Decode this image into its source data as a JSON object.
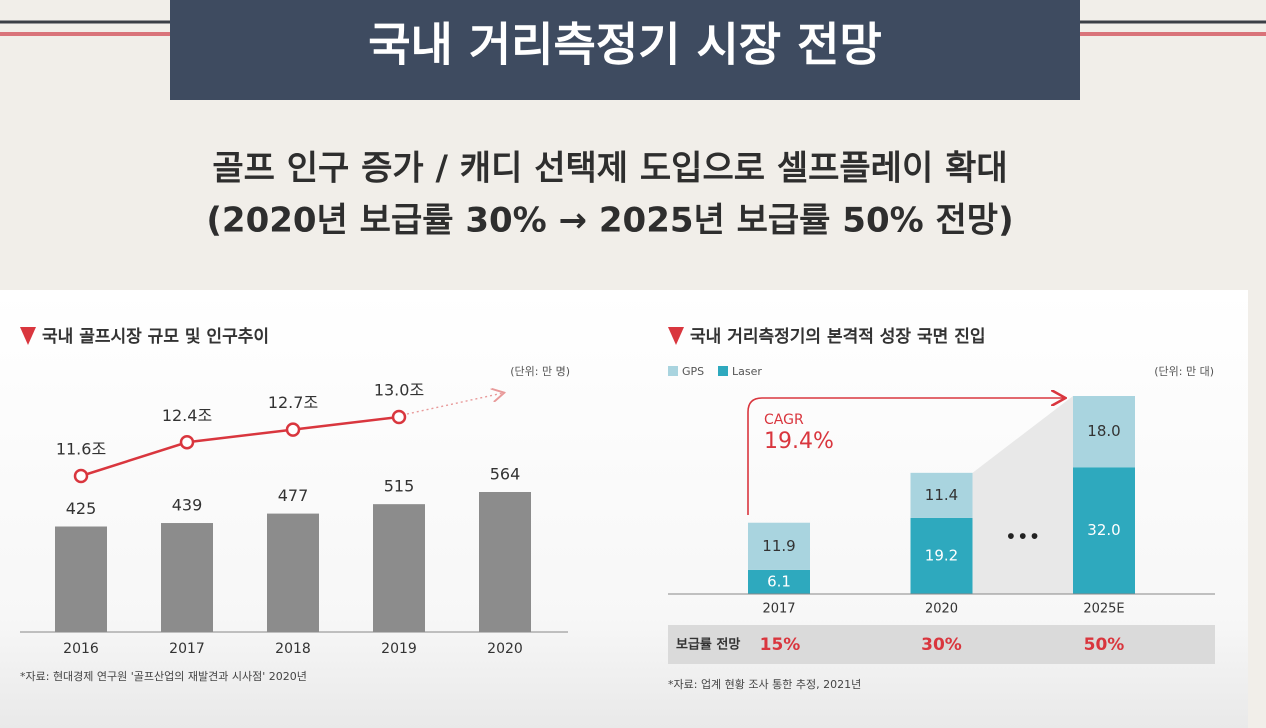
{
  "header": {
    "title": "국내 거리측정기 시장 전망",
    "subtitle": [
      "골프 인구 증가 / 캐디 선택제 도입으로 셀프플레이 확대",
      "(2020년 보급률 30% → 2025년 보급률 50% 전망)"
    ]
  },
  "chart_data": [
    {
      "type": "bar",
      "title": "국내 골프시장 규모 및 인구추이",
      "unit_label": "(단위: 만 명)",
      "categories": [
        "2016",
        "2017",
        "2018",
        "2019",
        "2020"
      ],
      "series": [
        {
          "type": "bar",
          "color": "#8c8c8c",
          "values": [
            425,
            439,
            477,
            515,
            564
          ]
        },
        {
          "type": "line",
          "color": "#d9363e",
          "values": [
            11.6,
            12.4,
            12.7,
            13.0,
            null
          ],
          "value_labels": [
            "11.6조",
            "12.4조",
            "12.7조",
            "13.0조",
            null
          ]
        }
      ],
      "source": "*자료: 현대경제 연구원 '골프산업의 재발견과 시사점' 2020년"
    },
    {
      "type": "stacked_bar",
      "title": "국내 거리측정기의 본격적 성장 국면 진입",
      "unit_label": "(단위: 만 대)",
      "categories": [
        "2017",
        "2020",
        "2025E"
      ],
      "series": [
        {
          "name": "GPS",
          "color": "#a9d4df",
          "values": [
            11.9,
            11.4,
            18.0
          ],
          "value_labels": [
            "11.9",
            "11.4",
            "18.0"
          ]
        },
        {
          "name": "Laser",
          "color": "#2ea9be",
          "values": [
            6.1,
            19.2,
            32.0
          ],
          "value_labels": [
            "6.1",
            "19.2",
            "32.0"
          ]
        }
      ],
      "annotation": {
        "label": "CAGR",
        "value": "19.4%"
      },
      "gap_label": "•••",
      "penetration": {
        "label": "보급률 전망",
        "values": [
          15,
          30,
          50
        ],
        "value_labels": [
          "15%",
          "30%",
          "50%"
        ]
      },
      "source": "*자료: 업계 현황 조사 통한 추정, 2021년"
    }
  ]
}
